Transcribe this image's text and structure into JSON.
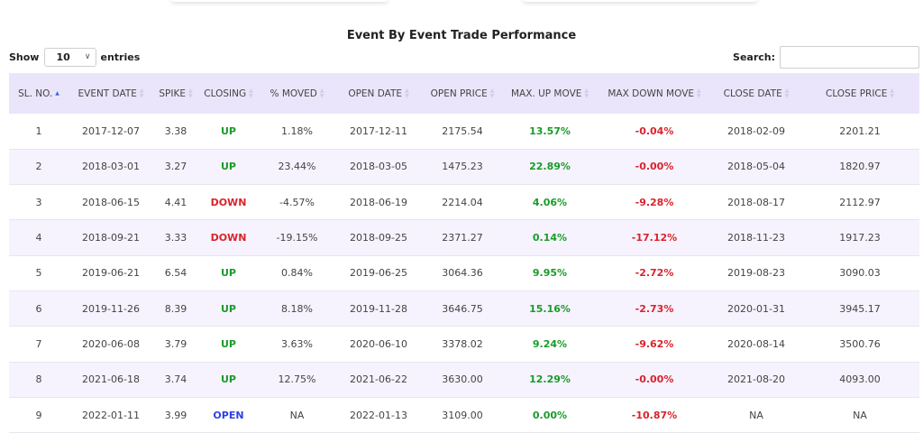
{
  "title": "Event By Event Trade Performance",
  "length_control": {
    "show_label": "Show",
    "selected": "10",
    "entries_label": "entries"
  },
  "search": {
    "label": "Search:",
    "value": ""
  },
  "colors": {
    "header_bg": "#ebe5fb",
    "stripe_bg": "#f6f3fe",
    "up": "#1a9b2a",
    "down": "#d9232d",
    "open": "#2f3fe6"
  },
  "columns": [
    "SL. NO.",
    "EVENT DATE",
    "SPIKE",
    "CLOSING",
    "% MOVED",
    "OPEN DATE",
    "OPEN PRICE",
    "MAX. UP MOVE",
    "MAX DOWN MOVE",
    "CLOSE DATE",
    "CLOSE PRICE"
  ],
  "rows": [
    [
      "1",
      "2017-12-07",
      "3.38",
      "UP",
      "1.18%",
      "2017-12-11",
      "2175.54",
      "13.57%",
      "-0.04%",
      "2018-02-09",
      "2201.21"
    ],
    [
      "2",
      "2018-03-01",
      "3.27",
      "UP",
      "23.44%",
      "2018-03-05",
      "1475.23",
      "22.89%",
      "-0.00%",
      "2018-05-04",
      "1820.97"
    ],
    [
      "3",
      "2018-06-15",
      "4.41",
      "DOWN",
      "-4.57%",
      "2018-06-19",
      "2214.04",
      "4.06%",
      "-9.28%",
      "2018-08-17",
      "2112.97"
    ],
    [
      "4",
      "2018-09-21",
      "3.33",
      "DOWN",
      "-19.15%",
      "2018-09-25",
      "2371.27",
      "0.14%",
      "-17.12%",
      "2018-11-23",
      "1917.23"
    ],
    [
      "5",
      "2019-06-21",
      "6.54",
      "UP",
      "0.84%",
      "2019-06-25",
      "3064.36",
      "9.95%",
      "-2.72%",
      "2019-08-23",
      "3090.03"
    ],
    [
      "6",
      "2019-11-26",
      "8.39",
      "UP",
      "8.18%",
      "2019-11-28",
      "3646.75",
      "15.16%",
      "-2.73%",
      "2020-01-31",
      "3945.17"
    ],
    [
      "7",
      "2020-06-08",
      "3.79",
      "UP",
      "3.63%",
      "2020-06-10",
      "3378.02",
      "9.24%",
      "-9.62%",
      "2020-08-14",
      "3500.76"
    ],
    [
      "8",
      "2021-06-18",
      "3.74",
      "UP",
      "12.75%",
      "2021-06-22",
      "3630.00",
      "12.29%",
      "-0.00%",
      "2021-08-20",
      "4093.00"
    ],
    [
      "9",
      "2022-01-11",
      "3.99",
      "OPEN",
      "NA",
      "2022-01-13",
      "3109.00",
      "0.00%",
      "-10.87%",
      "NA",
      "NA"
    ]
  ]
}
